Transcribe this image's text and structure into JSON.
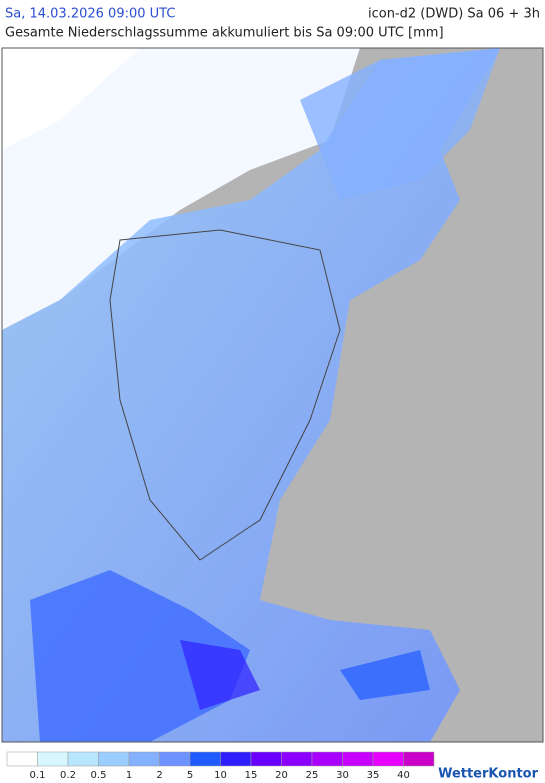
{
  "header": {
    "datetime": "Sa, 14.03.2026 09:00 UTC",
    "model": "icon-d2 (DWD) Sa 06 + 3h",
    "subtitle": "Gesamte Niederschlagssumme akkumuliert bis Sa 09:00 UTC [mm]"
  },
  "legend": {
    "values": [
      0.1,
      0.2,
      0.5,
      1,
      2,
      5,
      10,
      15,
      20,
      25,
      30,
      35,
      40
    ],
    "colors": [
      "#ffffff",
      "#d7f7ff",
      "#b8e6ff",
      "#9ccdff",
      "#85b0ff",
      "#6e92ff",
      "#1f5bff",
      "#2f1fff",
      "#6a00ff",
      "#8c00ff",
      "#aa00ff",
      "#c800ff",
      "#e600ff",
      "#c800c8"
    ]
  },
  "brand": "WetterKontor"
}
